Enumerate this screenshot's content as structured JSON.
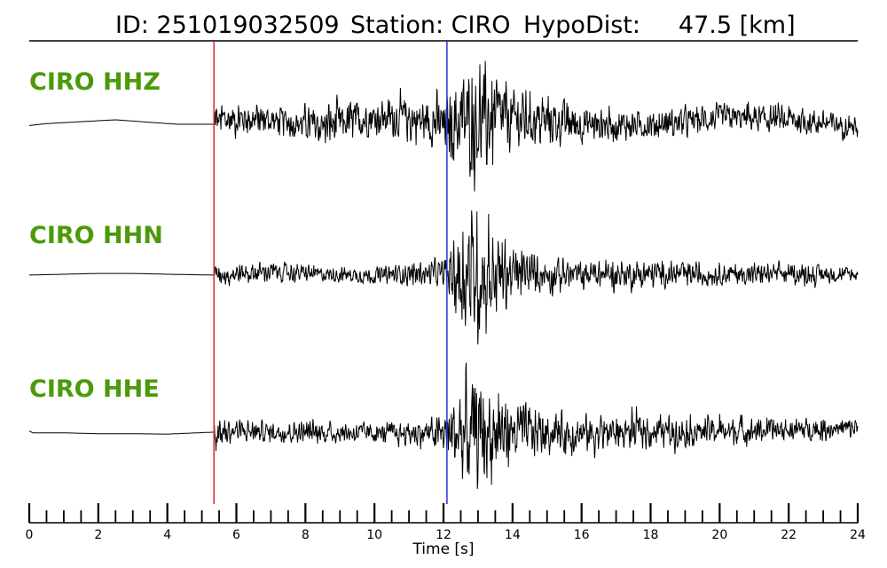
{
  "header": {
    "id_text": "ID: 251019032509",
    "station_text": "Station: CIRO",
    "dist_text": "HypoDist:     47.5 [km]"
  },
  "colors": {
    "trace": "#000000",
    "label": "#4c9a0a",
    "p_pick": "#e8272b",
    "s_pick": "#2a2ee0"
  },
  "chart_data": {
    "type": "line",
    "title": "ID: 251019032509   Station: CIRO   HypoDist:     47.5 [km]",
    "xlabel": "Time [s]",
    "ylabel": "",
    "xlim": [
      0,
      24
    ],
    "x_ticks": [
      0,
      2,
      4,
      6,
      8,
      10,
      12,
      14,
      16,
      18,
      20,
      22,
      24
    ],
    "minor_tick_step": 0.5,
    "p_pick_time": 5.35,
    "s_pick_time": 12.1,
    "grid": false,
    "legend": "none",
    "series": [
      {
        "name": "CIRO HHZ",
        "pre_event": [
          [
            0,
            -0.1
          ],
          [
            0.5,
            0.05
          ],
          [
            1.5,
            0.2
          ],
          [
            2.5,
            0.35
          ],
          [
            3.5,
            0.15
          ],
          [
            4.3,
            0.0
          ],
          [
            5.3,
            0.0
          ]
        ],
        "envelope": [
          [
            5.35,
            0.35
          ],
          [
            6,
            0.3
          ],
          [
            7,
            0.25
          ],
          [
            8,
            0.3
          ],
          [
            9,
            0.4
          ],
          [
            10,
            0.3
          ],
          [
            11,
            0.4
          ],
          [
            12,
            0.45
          ],
          [
            12.6,
            0.9
          ],
          [
            13.2,
            1.0
          ],
          [
            14,
            0.55
          ],
          [
            15,
            0.45
          ],
          [
            16,
            0.35
          ],
          [
            17,
            0.3
          ],
          [
            18,
            0.25
          ],
          [
            20,
            0.25
          ],
          [
            22,
            0.25
          ],
          [
            24,
            0.2
          ]
        ],
        "drift": [
          [
            5.35,
            0.15
          ],
          [
            6,
            0.25
          ],
          [
            7,
            0.2
          ],
          [
            8.5,
            -0.1
          ],
          [
            10,
            0.3
          ],
          [
            11,
            0.25
          ],
          [
            12,
            0.0
          ],
          [
            14,
            0.25
          ],
          [
            16,
            0.0
          ],
          [
            18,
            -0.05
          ],
          [
            20,
            0.3
          ],
          [
            22,
            0.2
          ],
          [
            24,
            -0.1
          ]
        ]
      },
      {
        "name": "CIRO HHN",
        "pre_event": [
          [
            0,
            -0.05
          ],
          [
            1,
            0.0
          ],
          [
            2,
            0.05
          ],
          [
            3,
            0.05
          ],
          [
            4,
            0.0
          ],
          [
            5.3,
            -0.05
          ]
        ],
        "envelope": [
          [
            5.35,
            0.12
          ],
          [
            6,
            0.15
          ],
          [
            7,
            0.15
          ],
          [
            8,
            0.12
          ],
          [
            9,
            0.1
          ],
          [
            10,
            0.12
          ],
          [
            11,
            0.15
          ],
          [
            12,
            0.2
          ],
          [
            12.4,
            0.7
          ],
          [
            13,
            1.0
          ],
          [
            14,
            0.4
          ],
          [
            15,
            0.25
          ],
          [
            16,
            0.2
          ],
          [
            18,
            0.2
          ],
          [
            20,
            0.15
          ],
          [
            22,
            0.15
          ],
          [
            24,
            0.1
          ]
        ],
        "drift": [
          [
            5.35,
            0.0
          ],
          [
            7,
            0.08
          ],
          [
            8.5,
            0.0
          ],
          [
            10,
            -0.05
          ],
          [
            11.5,
            0.05
          ],
          [
            12,
            0.0
          ],
          [
            24,
            0.0
          ]
        ]
      },
      {
        "name": "CIRO HHE",
        "pre_event": [
          [
            0,
            0.1
          ],
          [
            0.1,
            -0.05
          ],
          [
            1,
            -0.05
          ],
          [
            2,
            -0.12
          ],
          [
            3,
            -0.12
          ],
          [
            4,
            -0.15
          ],
          [
            5.3,
            0.0
          ]
        ],
        "envelope": [
          [
            5.35,
            0.25
          ],
          [
            6,
            0.2
          ],
          [
            7,
            0.18
          ],
          [
            8,
            0.2
          ],
          [
            9,
            0.2
          ],
          [
            10,
            0.18
          ],
          [
            11,
            0.2
          ],
          [
            12,
            0.35
          ],
          [
            12.5,
            0.9
          ],
          [
            13.2,
            1.0
          ],
          [
            14,
            0.55
          ],
          [
            15,
            0.4
          ],
          [
            16,
            0.35
          ],
          [
            18,
            0.3
          ],
          [
            20,
            0.25
          ],
          [
            22,
            0.2
          ],
          [
            24,
            0.2
          ]
        ],
        "drift": [
          [
            5.35,
            0.0
          ],
          [
            6,
            0.05
          ],
          [
            8,
            0.0
          ],
          [
            10,
            -0.05
          ],
          [
            12,
            -0.05
          ],
          [
            14,
            0.0
          ],
          [
            16,
            -0.05
          ],
          [
            18,
            0.05
          ],
          [
            20,
            0.05
          ],
          [
            22,
            0.1
          ],
          [
            24,
            0.2
          ]
        ]
      }
    ]
  }
}
